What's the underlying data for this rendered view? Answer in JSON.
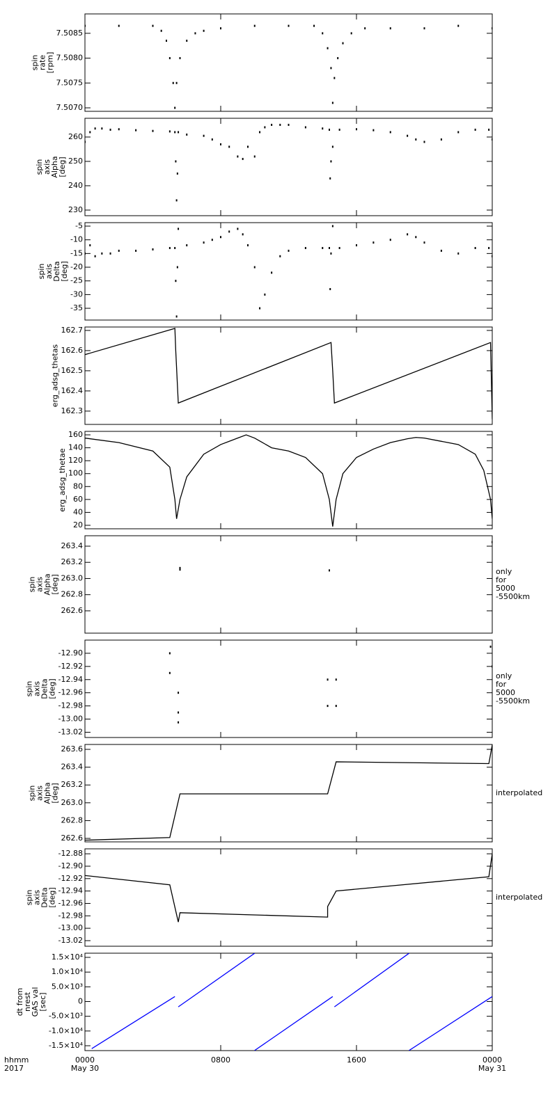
{
  "chart_data": [
    {
      "type": "scatter",
      "ylabel": [
        "spin",
        "rate",
        "[rpm]"
      ],
      "color": "#000000",
      "x": [
        0,
        2,
        4,
        4.5,
        4.8,
        5.0,
        5.2,
        5.3,
        5.4,
        5.6,
        6.0,
        6.5,
        7,
        8,
        10,
        12,
        13.5,
        14,
        14.3,
        14.5,
        14.6,
        14.7,
        14.9,
        15.2,
        15.7,
        16.5,
        18,
        20,
        22,
        24
      ],
      "values": [
        7.50865,
        7.50865,
        7.50865,
        7.50855,
        7.50835,
        7.508,
        7.5075,
        7.507,
        7.5075,
        7.508,
        7.50835,
        7.5085,
        7.50855,
        7.5086,
        7.50865,
        7.50865,
        7.50865,
        7.5085,
        7.5082,
        7.5078,
        7.5071,
        7.5076,
        7.508,
        7.5083,
        7.5085,
        7.5086,
        7.5086,
        7.5086,
        7.50865,
        7.5086
      ],
      "xlim": [
        0,
        24
      ],
      "ylim": [
        7.50693,
        7.50889
      ],
      "yticks": [
        {
          "value": 7.507,
          "label": "7.5070"
        },
        7.5075,
        {
          "value": 7.508,
          "label": "7.5080"
        },
        7.5085
      ]
    },
    {
      "type": "scatter",
      "ylabel": [
        "spin",
        "axis",
        "Alpha",
        "[deg]"
      ],
      "color": "#000000",
      "x": [
        0,
        0.3,
        0.6,
        1,
        1.5,
        2,
        3,
        4,
        5,
        5.3,
        5.35,
        5.4,
        5.45,
        5.5,
        6,
        7,
        7.5,
        8,
        8.5,
        9,
        9.3,
        9.6,
        10,
        10.3,
        10.6,
        11,
        11.5,
        12,
        13,
        14,
        14.4,
        14.45,
        14.5,
        14.6,
        15,
        16,
        17,
        18,
        19,
        19.5,
        20,
        21,
        22,
        23,
        23.8,
        24
      ],
      "values": [
        258,
        262,
        263.5,
        263.5,
        263,
        263.2,
        262.8,
        262.5,
        262.3,
        262,
        250,
        234,
        245,
        262,
        261,
        260.5,
        259,
        257,
        256,
        252,
        251,
        256,
        252,
        262,
        264,
        265,
        265,
        265,
        264,
        263.5,
        263,
        243,
        250,
        256,
        263,
        263.2,
        262.8,
        262,
        260.5,
        259,
        258,
        259,
        262,
        263,
        263,
        259
      ],
      "xlim": [
        0,
        24
      ],
      "ylim": [
        227.7,
        267.7
      ],
      "yticks": [
        230,
        240,
        250,
        260
      ]
    },
    {
      "type": "scatter",
      "ylabel": [
        "spin",
        "axis",
        "Delta",
        "[deg]"
      ],
      "color": "#000000",
      "x": [
        0,
        0.3,
        0.6,
        1,
        1.5,
        2,
        3,
        4,
        5,
        5.3,
        5.35,
        5.4,
        5.45,
        5.5,
        6,
        7,
        7.5,
        8,
        8.5,
        9,
        9.3,
        9.6,
        10,
        10.3,
        10.6,
        11,
        11.5,
        12,
        13,
        14,
        14.4,
        14.45,
        14.5,
        14.6,
        15,
        16,
        17,
        18,
        19,
        19.5,
        20,
        21,
        22,
        23,
        23.8,
        24
      ],
      "values": [
        -15,
        -12,
        -16,
        -15,
        -15,
        -14,
        -14,
        -13.5,
        -13,
        -13,
        -25,
        -38,
        -20,
        -6,
        -12,
        -11,
        -10,
        -9,
        -7,
        -6,
        -8,
        -12,
        -20,
        -35,
        -30,
        -22,
        -16,
        -14,
        -13,
        -13,
        -13,
        -28,
        -15,
        -5,
        -13,
        -12,
        -11,
        -10,
        -8,
        -9,
        -11,
        -14,
        -15,
        -13,
        -13,
        -16
      ],
      "xlim": [
        0,
        24
      ],
      "ylim": [
        -39.3,
        -3.73
      ],
      "yticks": [
        -35,
        -30,
        -25,
        -20,
        -15,
        -10,
        -5
      ]
    },
    {
      "type": "line",
      "ylabel": [
        "erg_adsg_thetas"
      ],
      "color": "#000000",
      "x": [
        0,
        5.3,
        5.35,
        5.5,
        14.5,
        14.6,
        14.7,
        23.9,
        24
      ],
      "values": [
        162.58,
        162.71,
        162.6,
        162.34,
        162.64,
        162.5,
        162.34,
        162.64,
        162.26
      ],
      "xlim": [
        0,
        24
      ],
      "ylim": [
        162.234,
        162.717
      ],
      "yticks": [
        162.3,
        162.4,
        162.5,
        162.6,
        162.7
      ]
    },
    {
      "type": "line",
      "ylabel": [
        "erg_adsg_thetae"
      ],
      "color": "#000000",
      "x": [
        0,
        2,
        4,
        5,
        5.3,
        5.4,
        5.6,
        6,
        7,
        8,
        9,
        9.5,
        10,
        11,
        12,
        13,
        14,
        14.4,
        14.6,
        14.8,
        15.2,
        16,
        17,
        18,
        19,
        19.5,
        20,
        21,
        22,
        23,
        23.5,
        23.9,
        24
      ],
      "values": [
        155,
        148,
        135,
        110,
        60,
        30,
        60,
        95,
        130,
        145,
        155,
        160,
        155,
        140,
        135,
        125,
        100,
        60,
        18,
        60,
        100,
        125,
        138,
        148,
        154,
        156,
        155,
        150,
        145,
        130,
        105,
        60,
        30
      ],
      "xlim": [
        0,
        24
      ],
      "ylim": [
        14.6,
        165.4
      ],
      "yticks": [
        20,
        40,
        60,
        80,
        100,
        120,
        140,
        160
      ]
    },
    {
      "type": "scatter",
      "ylabel": [
        "spin",
        "axis",
        "Alpha",
        "[deg]"
      ],
      "note": [
        "only",
        "for",
        "5000",
        "-5500km"
      ],
      "color": "#000000",
      "x": [
        5.6,
        5.6,
        14.4,
        24
      ],
      "values": [
        263.13,
        263.11,
        263.1,
        263.45
      ],
      "xlim": [
        0,
        24
      ],
      "ylim": [
        262.324,
        263.529
      ],
      "yticks": [
        262.6,
        262.8,
        {
          "value": 263,
          "label": "263.0"
        },
        263.2,
        263.4
      ]
    },
    {
      "type": "scatter",
      "ylabel": [
        "spin",
        "axis",
        "Delta",
        "[deg]"
      ],
      "note": [
        "only",
        "for",
        "5000",
        "-5500km"
      ],
      "color": "#000000",
      "x": [
        5.0,
        5.0,
        5.5,
        5.5,
        5.5,
        14.3,
        14.3,
        14.8,
        14.8,
        23.9,
        24
      ],
      "values": [
        -12.9,
        -12.93,
        -12.96,
        -12.99,
        -13.005,
        -12.94,
        -12.98,
        -12.94,
        -12.98,
        -12.89,
        -12.92
      ],
      "xlim": [
        0,
        24
      ],
      "ylim": [
        -13.028,
        -12.88
      ],
      "yticks": [
        {
          "value": -12.9,
          "label": "-12.90"
        },
        -12.92,
        -12.94,
        -12.96,
        -12.98,
        {
          "value": -13,
          "label": "-13.00"
        },
        -13.02
      ]
    },
    {
      "type": "line",
      "ylabel": [
        "spin",
        "axis",
        "Alpha",
        "[deg]"
      ],
      "note": [
        "interpolated"
      ],
      "color": "#000000",
      "x": [
        0,
        5,
        5.6,
        14.3,
        14.8,
        23.8,
        24
      ],
      "values": [
        262.58,
        262.61,
        263.1,
        263.1,
        263.46,
        263.44,
        263.65
      ],
      "xlim": [
        0,
        24
      ],
      "ylim": [
        262.561,
        263.655
      ],
      "yticks": [
        262.6,
        262.8,
        {
          "value": 263,
          "label": "263.0"
        },
        263.2,
        263.4,
        263.6
      ]
    },
    {
      "type": "line",
      "ylabel": [
        "spin",
        "axis",
        "Delta",
        "[deg]"
      ],
      "note": [
        "interpolated"
      ],
      "color": "#000000",
      "x": [
        0,
        5,
        5.5,
        5.6,
        14.3,
        14.3,
        14.8,
        23.8,
        24
      ],
      "values": [
        -12.915,
        -12.93,
        -12.99,
        -12.975,
        -12.982,
        -12.965,
        -12.94,
        -12.917,
        -12.88
      ],
      "xlim": [
        0,
        24
      ],
      "ylim": [
        -13.029,
        -12.872
      ],
      "yticks": [
        -12.88,
        {
          "value": -12.9,
          "label": "-12.90"
        },
        -12.92,
        -12.94,
        -12.96,
        -12.98,
        {
          "value": -13,
          "label": "-13.00"
        },
        -13.02
      ]
    },
    {
      "type": "line",
      "ylabel": [
        "dt from",
        "nrest",
        "GAS val",
        "[sec]"
      ],
      "color": "#0000ff",
      "x": [
        0.4,
        5.3,
        5.4,
        5.5,
        10.0,
        10.0,
        10.0,
        14.6,
        14.65,
        14.7,
        19.1,
        19.1,
        19.1,
        24
      ],
      "values": [
        -16000,
        1700,
        null,
        -1800,
        16400,
        null,
        -16600,
        1700,
        null,
        -1800,
        16400,
        null,
        -16600,
        1700
      ],
      "xlim": [
        0,
        24
      ],
      "ylim": [
        -16654,
        16417
      ],
      "yticks": [
        {
          "value": 15000,
          "label": "1.5×10⁴"
        },
        {
          "value": 10000,
          "label": "1.0×10⁴"
        },
        {
          "value": 5000,
          "label": "5.0×10³"
        },
        0,
        {
          "value": -5000,
          "label": "-5.0×10³"
        },
        {
          "value": -10000,
          "label": "-1.0×10⁴"
        },
        {
          "value": -15000,
          "label": "-1.5×10⁴"
        }
      ],
      "xticks": [
        {
          "value": 0,
          "label": "0000"
        },
        {
          "value": 8,
          "label": "0800"
        },
        {
          "value": 16,
          "label": "1600"
        },
        {
          "value": 24,
          "label": "0000"
        }
      ],
      "date_labels": [
        {
          "value": 0,
          "label": "May 30"
        },
        {
          "value": 24,
          "label": "May 31"
        }
      ],
      "x_axis_label": [
        "hhmm",
        "2017"
      ]
    }
  ]
}
